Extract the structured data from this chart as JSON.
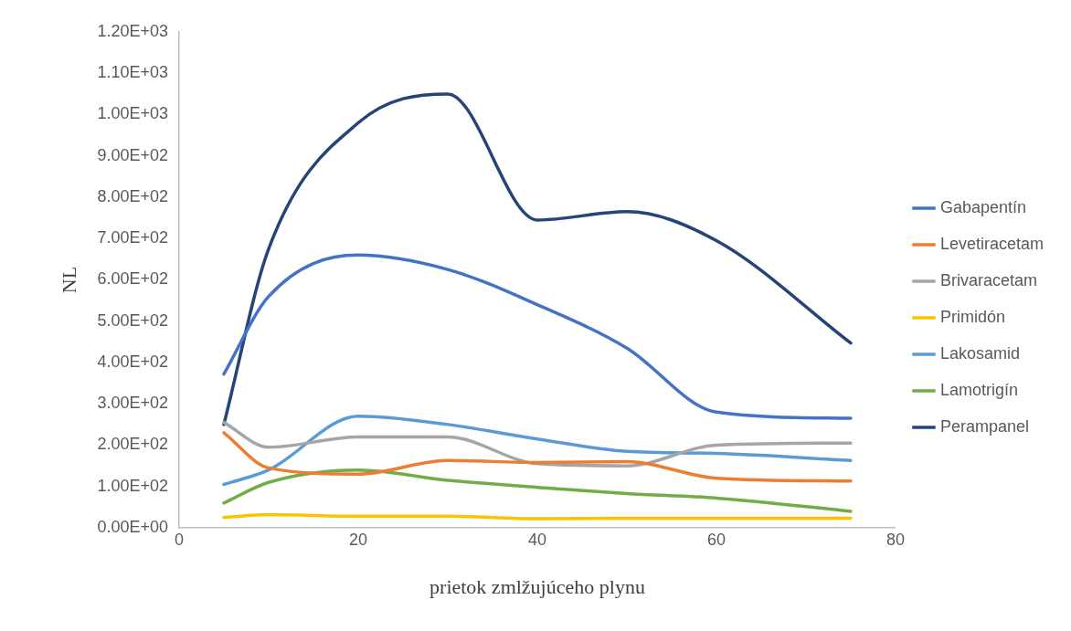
{
  "chart_data": {
    "type": "line",
    "xlabel": "prietok zmlžujúceho plynu",
    "ylabel": "NL",
    "x": [
      5,
      10,
      20,
      30,
      40,
      50,
      60,
      75
    ],
    "xlim": [
      0,
      80
    ],
    "xticks": [
      0,
      20,
      40,
      60,
      80
    ],
    "ylim": [
      0,
      1200
    ],
    "yticks": [
      {
        "value": 0,
        "label": "0.00E+00"
      },
      {
        "value": 100,
        "label": "1.00E+02"
      },
      {
        "value": 200,
        "label": "2.00E+02"
      },
      {
        "value": 300,
        "label": "3.00E+02"
      },
      {
        "value": 400,
        "label": "4.00E+02"
      },
      {
        "value": 500,
        "label": "5.00E+02"
      },
      {
        "value": 600,
        "label": "6.00E+02"
      },
      {
        "value": 700,
        "label": "7.00E+02"
      },
      {
        "value": 800,
        "label": "8.00E+02"
      },
      {
        "value": 900,
        "label": "9.00E+02"
      },
      {
        "value": 1000,
        "label": "1.00E+03"
      },
      {
        "value": 1100,
        "label": "1.10E+03"
      },
      {
        "value": 1200,
        "label": "1.20E+03"
      }
    ],
    "grid": false,
    "legend": "right",
    "marker": "none",
    "line_style": "solid",
    "series": [
      {
        "name": "Gabapentín",
        "color": "#4472c4",
        "values": [
          372,
          560,
          660,
          625,
          540,
          435,
          280,
          265
        ]
      },
      {
        "name": "Levetiracetam",
        "color": "#ed7d31",
        "values": [
          230,
          145,
          130,
          163,
          158,
          160,
          120,
          113
        ]
      },
      {
        "name": "Brivaracetam",
        "color": "#a5a5a5",
        "values": [
          255,
          195,
          220,
          220,
          155,
          150,
          200,
          205
        ]
      },
      {
        "name": "Primidón",
        "color": "#ffc000",
        "values": [
          25,
          32,
          28,
          28,
          22,
          23,
          23,
          23
        ]
      },
      {
        "name": "Lakosamid",
        "color": "#5b9bd5",
        "values": [
          105,
          140,
          270,
          250,
          215,
          185,
          180,
          163
        ]
      },
      {
        "name": "Lamotrigín",
        "color": "#70ad47",
        "values": [
          60,
          110,
          140,
          115,
          98,
          83,
          72,
          40
        ]
      },
      {
        "name": "Perampanel",
        "color": "#264478",
        "values": [
          250,
          675,
          980,
          1050,
          745,
          765,
          695,
          447
        ]
      }
    ]
  }
}
